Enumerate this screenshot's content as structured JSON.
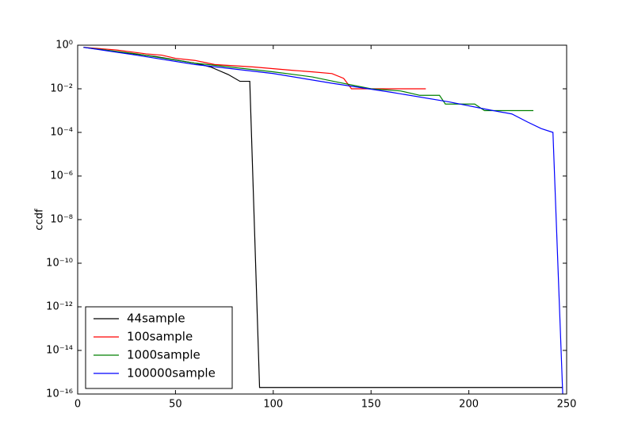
{
  "chart_data": {
    "type": "line",
    "ylabel": "ccdf",
    "log_y": true,
    "legend": "lower left",
    "xlim": [
      0,
      250
    ],
    "xticks": [
      0,
      50,
      100,
      150,
      200,
      250
    ],
    "ylim": [
      1e-16,
      1
    ],
    "yticks": [
      {
        "value": 1,
        "label": "10⁰"
      },
      {
        "value": 0.01,
        "label": "10⁻²"
      },
      {
        "value": 0.0001,
        "label": "10⁻⁴"
      },
      {
        "value": 1e-06,
        "label": "10⁻⁶"
      },
      {
        "value": 1e-08,
        "label": "10⁻⁸"
      },
      {
        "value": 1e-10,
        "label": "10⁻¹⁰"
      },
      {
        "value": 1e-12,
        "label": "10⁻¹²"
      },
      {
        "value": 1e-14,
        "label": "10⁻¹⁴"
      },
      {
        "value": 1e-16,
        "label": "10⁻¹⁶"
      }
    ],
    "series": [
      {
        "name": "44sample",
        "color": "#000000",
        "x": [
          3,
          20,
          40,
          60,
          68,
          72,
          77,
          83,
          88,
          93,
          248
        ],
        "values": [
          0.8,
          0.5,
          0.3,
          0.15,
          0.1,
          0.07,
          0.045,
          0.022,
          0.022,
          2e-16,
          2e-16
        ]
      },
      {
        "name": "100sample",
        "color": "#ff0000",
        "x": [
          3,
          20,
          35,
          43,
          50,
          60,
          70,
          90,
          110,
          120,
          130,
          136,
          140,
          150,
          178
        ],
        "values": [
          0.8,
          0.6,
          0.4,
          0.35,
          0.25,
          0.2,
          0.13,
          0.1,
          0.07,
          0.06,
          0.05,
          0.03,
          0.01,
          0.01,
          0.01
        ]
      },
      {
        "name": "1000sample",
        "color": "#008000",
        "x": [
          3,
          30,
          60,
          100,
          120,
          133,
          150,
          165,
          175,
          185,
          188,
          203,
          208,
          233
        ],
        "values": [
          0.8,
          0.4,
          0.15,
          0.06,
          0.035,
          0.02,
          0.01,
          0.008,
          0.005,
          0.005,
          0.002,
          0.002,
          0.001,
          0.001
        ]
      },
      {
        "name": "100000sample",
        "color": "#0000ff",
        "x": [
          3,
          30,
          60,
          100,
          130,
          160,
          190,
          210,
          222,
          230,
          237,
          243,
          248
        ],
        "values": [
          0.8,
          0.35,
          0.13,
          0.05,
          0.018,
          0.007,
          0.0025,
          0.0011,
          0.0007,
          0.0003,
          0.00015,
          0.0001,
          1e-16
        ]
      }
    ]
  }
}
